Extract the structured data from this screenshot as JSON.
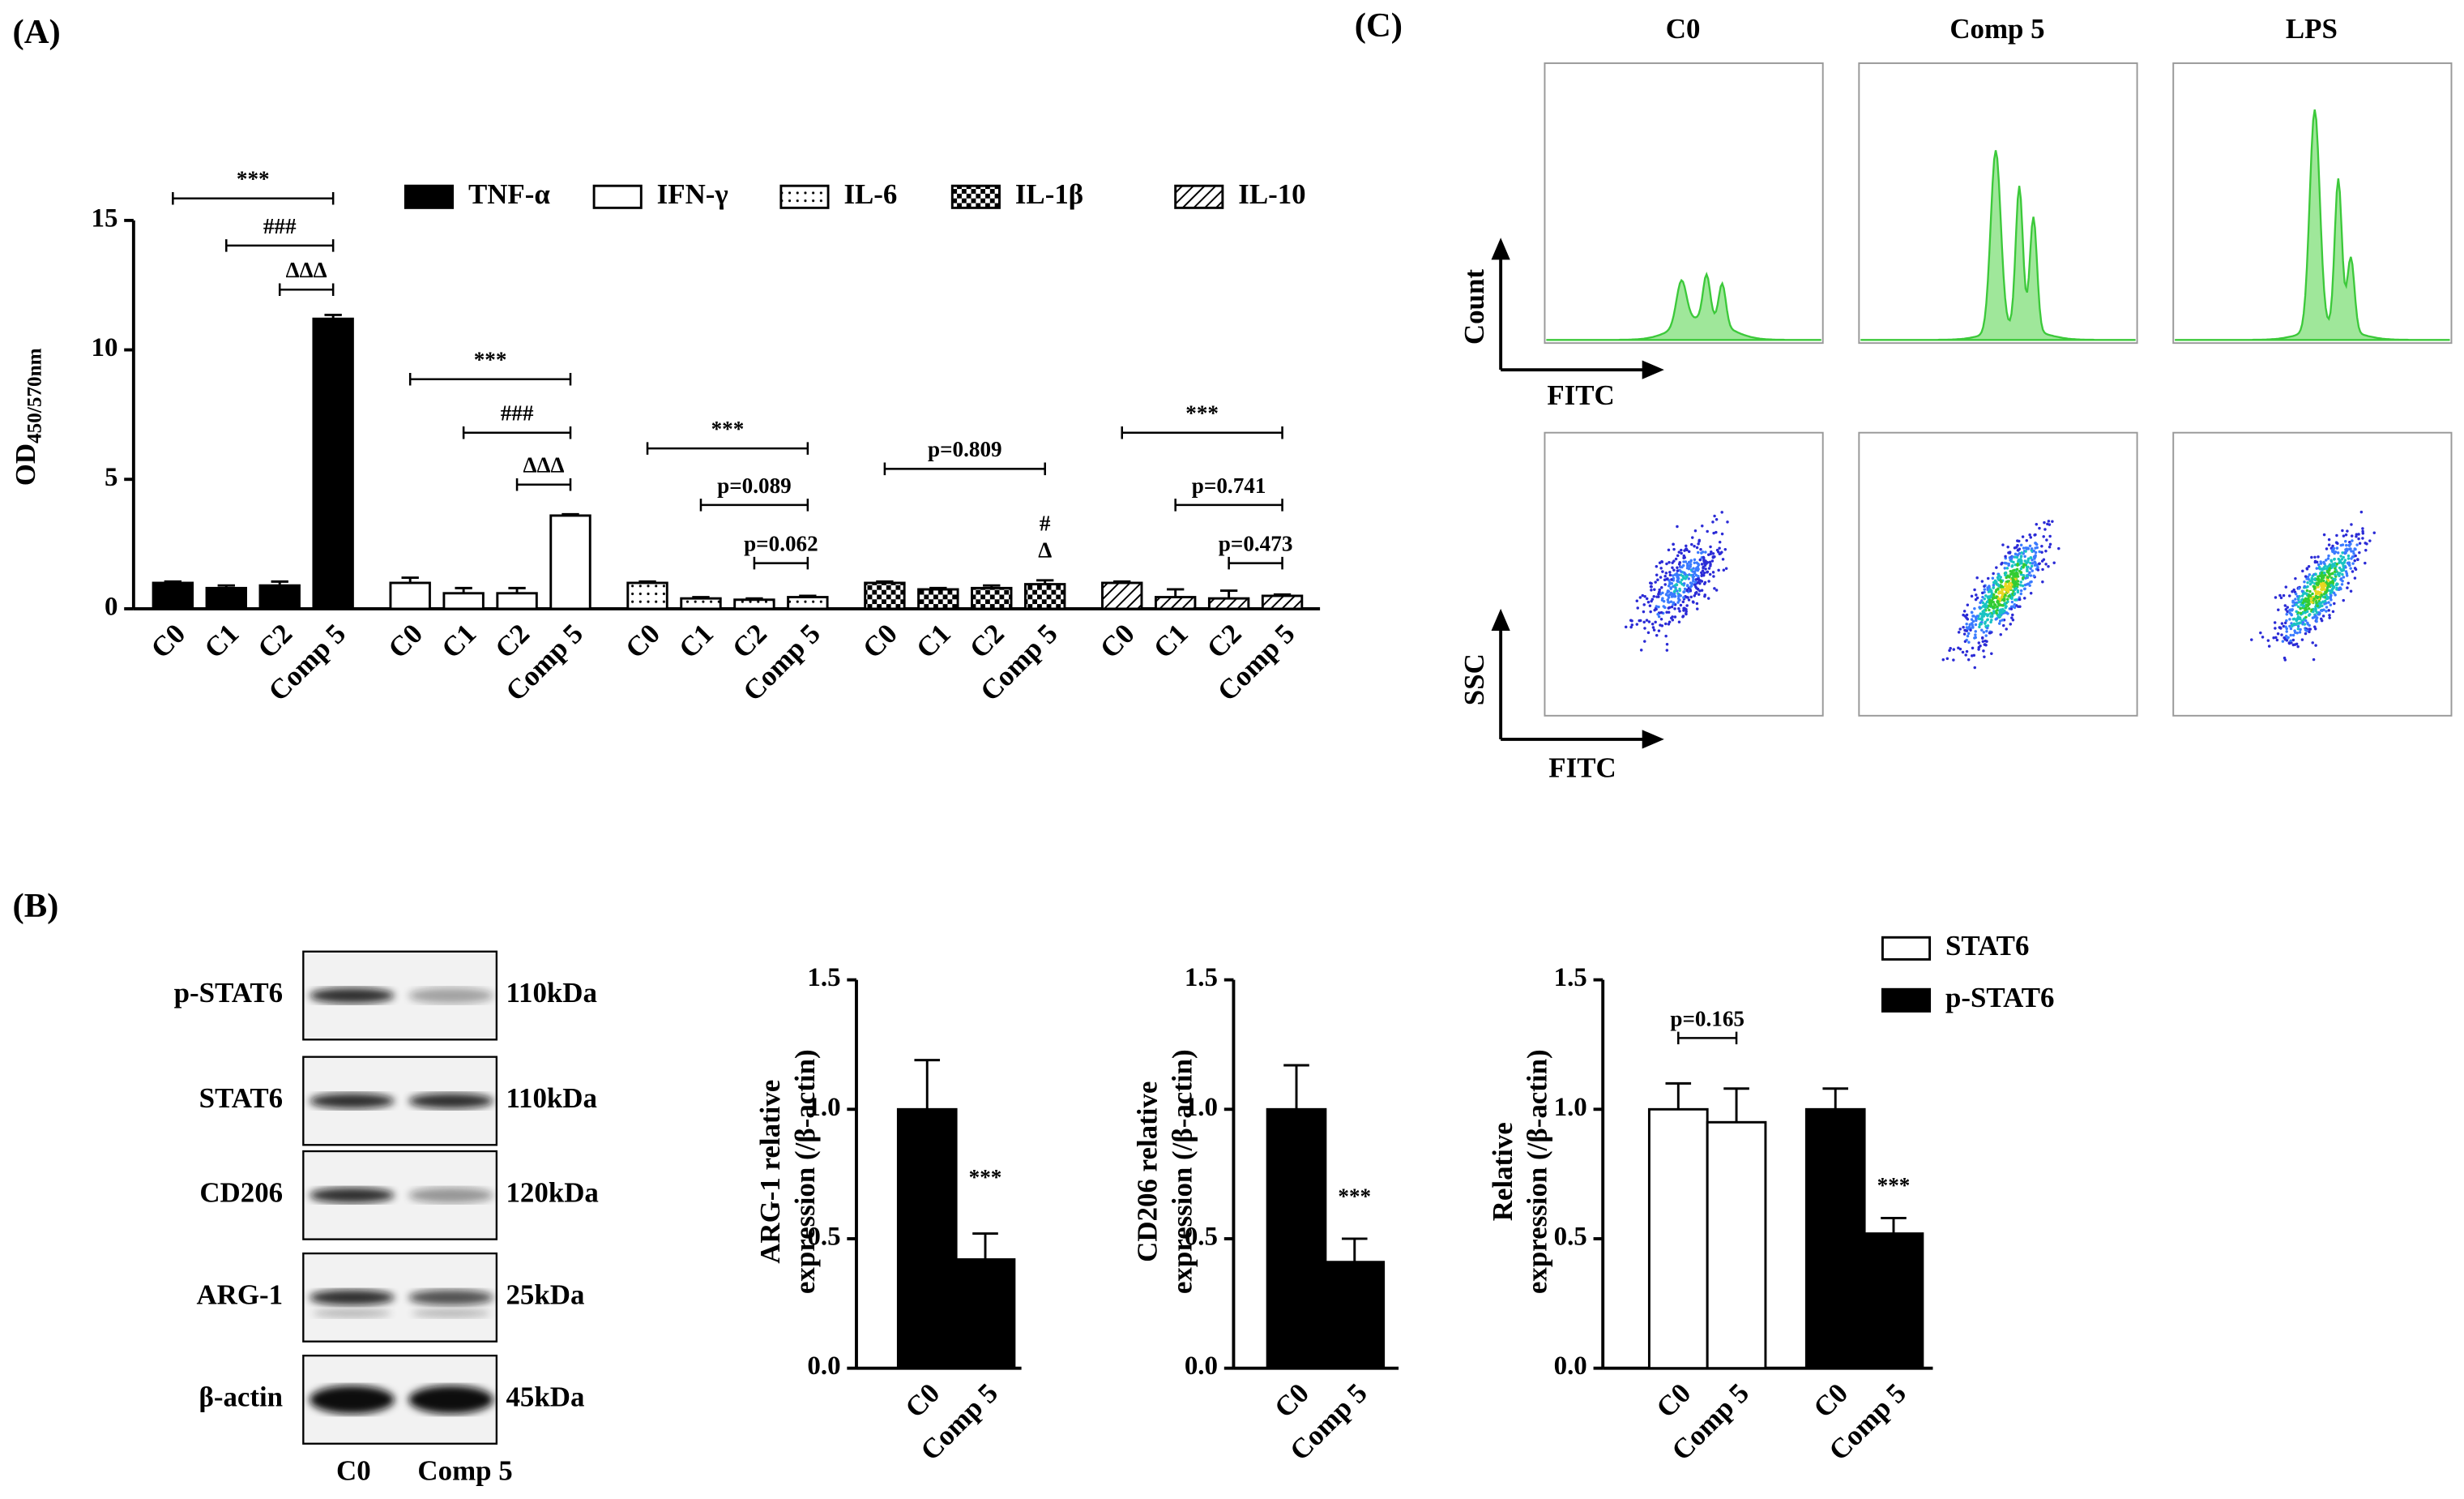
{
  "panel_labels": [
    "(A)",
    "(B)",
    "(C)"
  ],
  "western_blot": {
    "rows": [
      {
        "label": "p-STAT6",
        "size": "110kDa"
      },
      {
        "label": "STAT6",
        "size": "110kDa"
      },
      {
        "label": "CD206",
        "size": "120kDa"
      },
      {
        "label": "ARG-1",
        "size": "25kDa"
      },
      {
        "label": "β-actin",
        "size": "45kDa"
      }
    ],
    "lanes": [
      "C0",
      "Comp 5"
    ]
  },
  "flow_cytometry": {
    "columns": [
      "C0",
      "Comp 5",
      "LPS"
    ],
    "histogram_axes": {
      "y": "Count",
      "x": "FITC"
    },
    "scatter_axes": {
      "y": "SSC",
      "x": "FITC"
    }
  },
  "chart_data": [
    {
      "type": "bar",
      "y_label": "OD",
      "y_label_subscript": "450/570nm",
      "categories": [
        "C0",
        "C1",
        "C2",
        "Comp 5"
      ],
      "series": [
        {
          "name": "TNF-α",
          "color": "#000000",
          "pattern": "solid",
          "values": [
            1.0,
            0.8,
            0.9,
            11.2
          ],
          "errors": [
            0.05,
            0.1,
            0.15,
            0.15
          ]
        },
        {
          "name": "IFN-γ",
          "color": "#000000",
          "pattern": "none",
          "values": [
            1.0,
            0.6,
            0.6,
            3.6
          ],
          "errors": [
            0.2,
            0.2,
            0.2,
            0.05
          ]
        },
        {
          "name": "IL-6",
          "color": "#000000",
          "pattern": "dots",
          "values": [
            1.0,
            0.4,
            0.35,
            0.45
          ],
          "errors": [
            0.05,
            0.05,
            0.05,
            0.05
          ]
        },
        {
          "name": "IL-1β",
          "color": "#000000",
          "pattern": "checker",
          "values": [
            1.0,
            0.75,
            0.8,
            0.95
          ],
          "errors": [
            0.05,
            0.05,
            0.1,
            0.15
          ]
        },
        {
          "name": "IL-10",
          "color": "#000000",
          "pattern": "hatch",
          "values": [
            1.0,
            0.45,
            0.4,
            0.5
          ],
          "errors": [
            0.05,
            0.3,
            0.3,
            0.05
          ]
        }
      ],
      "annotations": [
        "***",
        "###",
        "ΔΔΔ",
        "***",
        "###",
        "ΔΔΔ",
        "***",
        "p=0.089",
        "p=0.062",
        "p=0.809",
        "#",
        "Δ",
        "***",
        "p=0.741",
        "p=0.473"
      ],
      "ylim": [
        0,
        15
      ],
      "yticks": [
        0,
        5,
        10,
        15
      ],
      "legend": "top-right"
    },
    {
      "type": "bar",
      "y_label": [
        "ARG-1 relative",
        "expression (/β-actin)"
      ],
      "categories": [
        "C0",
        "Comp 5"
      ],
      "series": [
        {
          "color": "#000000",
          "pattern": "solid",
          "values": [
            1.0,
            0.42
          ],
          "errors": [
            0.19,
            0.1
          ]
        }
      ],
      "annotations": [
        "***"
      ],
      "ylim": [
        0,
        1.5
      ],
      "yticks": [
        {
          "value": 0,
          "label": "0.0"
        },
        0.5,
        {
          "value": 1,
          "label": "1.0"
        },
        1.5
      ]
    },
    {
      "type": "bar",
      "y_label": [
        "CD206 relative",
        "expression (/β-actin)"
      ],
      "categories": [
        "C0",
        "Comp 5"
      ],
      "series": [
        {
          "color": "#000000",
          "pattern": "solid",
          "values": [
            1.0,
            0.41
          ],
          "errors": [
            0.17,
            0.09
          ]
        }
      ],
      "annotations": [
        "***"
      ],
      "ylim": [
        0,
        1.5
      ],
      "yticks": [
        {
          "value": 0,
          "label": "0.0"
        },
        0.5,
        {
          "value": 1,
          "label": "1.0"
        },
        1.5
      ]
    },
    {
      "type": "bar",
      "y_label": [
        "Relative",
        "expression (/β-actin)"
      ],
      "categories": [
        "C0",
        "Comp 5"
      ],
      "series": [
        {
          "name": "STAT6",
          "color": "#000000",
          "pattern": "none",
          "values": [
            1.0,
            0.95
          ],
          "errors": [
            0.1,
            0.13
          ]
        },
        {
          "name": "p-STAT6",
          "color": "#000000",
          "pattern": "solid",
          "values": [
            1.0,
            0.52
          ],
          "errors": [
            0.08,
            0.06
          ]
        }
      ],
      "annotations": [
        "p=0.165",
        "***"
      ],
      "ylim": [
        0,
        1.5
      ],
      "yticks": [
        {
          "value": 0,
          "label": "0.0"
        },
        0.5,
        {
          "value": 1,
          "label": "1.0"
        },
        1.5
      ],
      "legend": "top-right"
    }
  ]
}
